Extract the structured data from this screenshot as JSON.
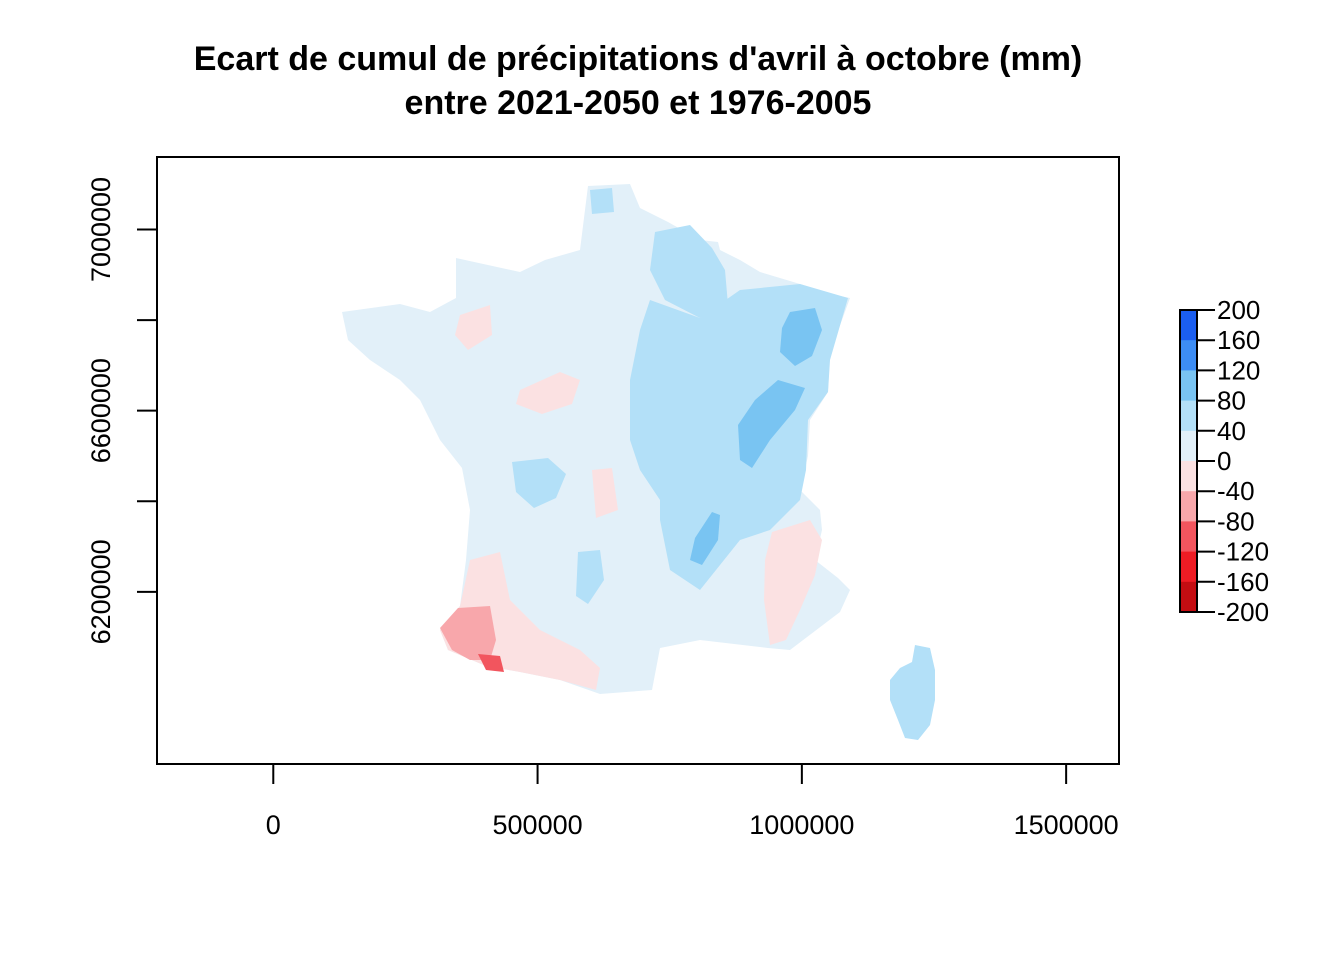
{
  "figure": {
    "title_line1": "Ecart de cumul de précipitations d'avril à octobre (mm)",
    "title_line2": "entre 2021-2050 et 1976-2005"
  },
  "map": {
    "x_range": [
      -220000,
      1600000
    ],
    "y_range": [
      5820000,
      7160000
    ],
    "x_ticks": [
      {
        "value": 0,
        "label": "0"
      },
      {
        "value": 500000,
        "label": "500000"
      },
      {
        "value": 1000000,
        "label": "1000000"
      },
      {
        "value": 1500000,
        "label": "1500000"
      }
    ],
    "y_ticks": [
      {
        "value": 6200000,
        "label": "6200000",
        "show_label": true
      },
      {
        "value": 6400000,
        "label": "",
        "show_label": false
      },
      {
        "value": 6600000,
        "label": "6600000",
        "show_label": true
      },
      {
        "value": 6800000,
        "label": "",
        "show_label": false
      },
      {
        "value": 7000000,
        "label": "7000000",
        "show_label": true
      }
    ],
    "base_color": "#e2f0f9",
    "regions": [
      {
        "name": "north-coast-high",
        "color": "#b3e0f8"
      },
      {
        "name": "champagne",
        "color": "#b3e0f8"
      },
      {
        "name": "northeast-plateau",
        "color": "#b3e0f8"
      },
      {
        "name": "vosges",
        "color": "#79c4f2"
      },
      {
        "name": "jura",
        "color": "#79c4f2"
      },
      {
        "name": "alps",
        "color": "#79c4f2"
      },
      {
        "name": "vendee",
        "color": "#b3e0f8"
      },
      {
        "name": "massif-central",
        "color": "#b3e0f8"
      },
      {
        "name": "corsica",
        "color": "#b3e0f8"
      },
      {
        "name": "pays-basque",
        "color": "#f8a7ab"
      },
      {
        "name": "pyrenees-ouest",
        "color": "#fbe1e2"
      },
      {
        "name": "basque-strip",
        "color": "#f2555e"
      },
      {
        "name": "provence",
        "color": "#fbe1e2"
      },
      {
        "name": "centre",
        "color": "#fbe1e2"
      },
      {
        "name": "normandie",
        "color": "#fbe1e2"
      }
    ]
  },
  "legend": {
    "levels": [
      {
        "label": "200",
        "color": "#1b5ef0"
      },
      {
        "label": "160",
        "color": "#3d8df4"
      },
      {
        "label": "120",
        "color": "#79c4f2"
      },
      {
        "label": "80",
        "color": "#b3e0f8"
      },
      {
        "label": "40",
        "color": "#e2f0f9"
      },
      {
        "label": "0",
        "color": "#fbe1e2"
      },
      {
        "label": "-40",
        "color": "#f8a7ab"
      },
      {
        "label": "-80",
        "color": "#f2555e"
      },
      {
        "label": "-120",
        "color": "#ee1c24"
      },
      {
        "label": "-160",
        "color": "#c40d12"
      },
      {
        "label": "-200",
        "color": "#7c0000"
      }
    ]
  }
}
